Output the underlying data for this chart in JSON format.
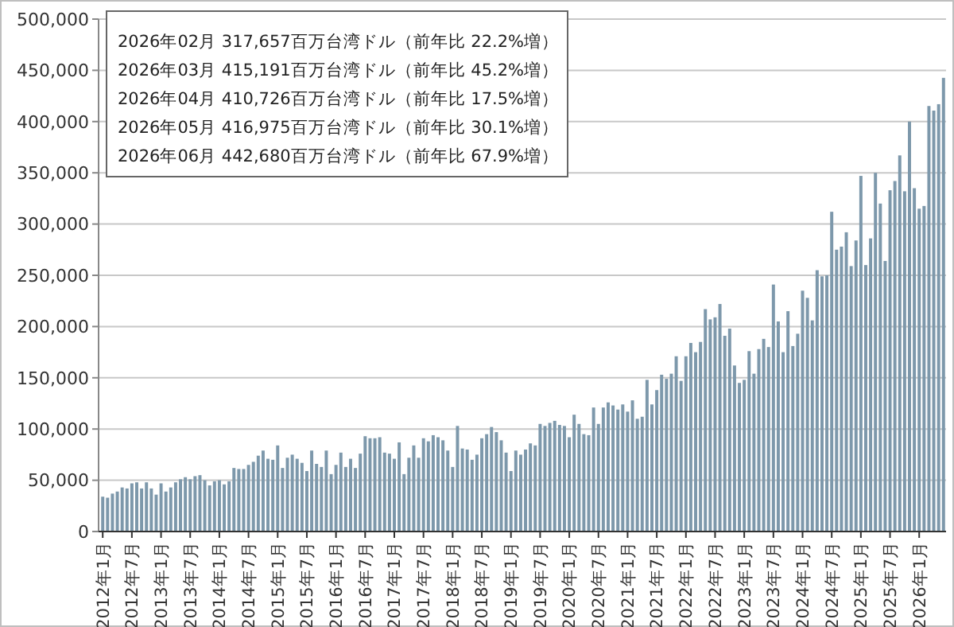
{
  "chart_data": {
    "type": "bar",
    "color": "#7d98ab",
    "categories": [
      "2012年1月",
      null,
      null,
      null,
      null,
      null,
      "2012年7月",
      null,
      null,
      null,
      null,
      null,
      "2013年1月",
      null,
      null,
      null,
      null,
      null,
      "2013年7月",
      null,
      null,
      null,
      null,
      null,
      "2014年1月",
      null,
      null,
      null,
      null,
      null,
      "2014年7月",
      null,
      null,
      null,
      null,
      null,
      "2015年1月",
      null,
      null,
      null,
      null,
      null,
      "2015年7月",
      null,
      null,
      null,
      null,
      null,
      "2016年1月",
      null,
      null,
      null,
      null,
      null,
      "2016年7月",
      null,
      null,
      null,
      null,
      null,
      "2017年1月",
      null,
      null,
      null,
      null,
      null,
      "2017年7月",
      null,
      null,
      null,
      null,
      null,
      "2018年1月",
      null,
      null,
      null,
      null,
      null,
      "2018年7月",
      null,
      null,
      null,
      null,
      null,
      "2019年1月",
      null,
      null,
      null,
      null,
      null,
      "2019年7月",
      null,
      null,
      null,
      null,
      null,
      "2020年1月",
      null,
      null,
      null,
      null,
      null,
      "2020年7月",
      null,
      null,
      null,
      null,
      null,
      "2021年1月",
      null,
      null,
      null,
      null,
      null,
      "2021年7月",
      null,
      null,
      null,
      null,
      null,
      "2022年1月",
      null,
      null,
      null,
      null,
      null,
      "2022年7月",
      null,
      null,
      null,
      null,
      null,
      "2023年1月",
      null,
      null,
      null,
      null,
      null,
      "2023年7月",
      null,
      null,
      null,
      null,
      null,
      "2024年1月",
      null,
      null,
      null,
      null,
      null,
      "2024年7月",
      null,
      null,
      null,
      null,
      null,
      "2025年1月",
      null,
      null,
      null,
      null,
      null,
      "2025年7月",
      null,
      null,
      null,
      null,
      null,
      "2026年1月",
      null,
      null,
      null,
      null,
      null
    ],
    "values": [
      34000,
      33000,
      37000,
      39000,
      43000,
      42000,
      47000,
      48000,
      42000,
      48000,
      42000,
      36000,
      47000,
      39000,
      43000,
      48000,
      51000,
      53000,
      51000,
      54000,
      55000,
      50000,
      45000,
      49000,
      50000,
      46000,
      49000,
      62000,
      61000,
      61000,
      65000,
      68000,
      74000,
      79000,
      71000,
      70000,
      84000,
      62000,
      72000,
      75000,
      71000,
      67000,
      59000,
      79000,
      66000,
      63000,
      79000,
      56000,
      65000,
      77000,
      63000,
      71000,
      62000,
      76000,
      93000,
      91000,
      91000,
      92000,
      77000,
      76000,
      71000,
      87000,
      56000,
      72000,
      84000,
      72000,
      91000,
      88000,
      94000,
      92000,
      89000,
      79000,
      63000,
      103000,
      81000,
      80000,
      70000,
      75000,
      91000,
      95000,
      102000,
      97000,
      89000,
      77000,
      59000,
      79000,
      75000,
      80000,
      86000,
      84000,
      105000,
      103000,
      106000,
      108000,
      104000,
      103000,
      92000,
      114000,
      105000,
      95000,
      94000,
      121000,
      105000,
      121000,
      126000,
      123000,
      119000,
      124000,
      117000,
      128000,
      110000,
      112000,
      148000,
      124000,
      138000,
      153000,
      149000,
      154000,
      171000,
      147000,
      171000,
      184000,
      175000,
      185000,
      217000,
      207000,
      209000,
      222000,
      191000,
      198000,
      162000,
      145000,
      148000,
      176000,
      154000,
      178000,
      188000,
      180000,
      241000,
      205000,
      175000,
      215000,
      181000,
      193000,
      235000,
      228000,
      206000,
      255000,
      249000,
      250000,
      312000,
      275000,
      278000,
      292000,
      259000,
      284000,
      347000,
      260000,
      286000,
      350000,
      320000,
      264000,
      333000,
      342000,
      367000,
      332000,
      400000,
      335000,
      315000,
      317657,
      415191,
      410726,
      416975,
      442680
    ],
    "ylim": [
      0,
      500000
    ],
    "yticks": [
      0,
      {
        "value": 50000,
        "label": "50,000"
      },
      {
        "value": 100000,
        "label": "100,000"
      },
      {
        "value": 150000,
        "label": "150,000"
      },
      {
        "value": 200000,
        "label": "200,000"
      },
      {
        "value": 250000,
        "label": "250,000"
      },
      {
        "value": 300000,
        "label": "300,000"
      },
      {
        "value": 350000,
        "label": "350,000"
      },
      {
        "value": 400000,
        "label": "400,000"
      },
      {
        "value": 450000,
        "label": "450,000"
      },
      {
        "value": 500000,
        "label": "500,000"
      }
    ],
    "grid": "y",
    "annotations": [
      "2026年02月  317,657百万台湾ドル（前年比 22.2%増）",
      "2026年03月  415,191百万台湾ドル（前年比 45.2%増）",
      "2026年04月  410,726百万台湾ドル（前年比 17.5%増）",
      "2026年05月  416,975百万台湾ドル（前年比 30.1%増）",
      "2026年06月  442,680百万台湾ドル（前年比 67.9%増）"
    ]
  }
}
